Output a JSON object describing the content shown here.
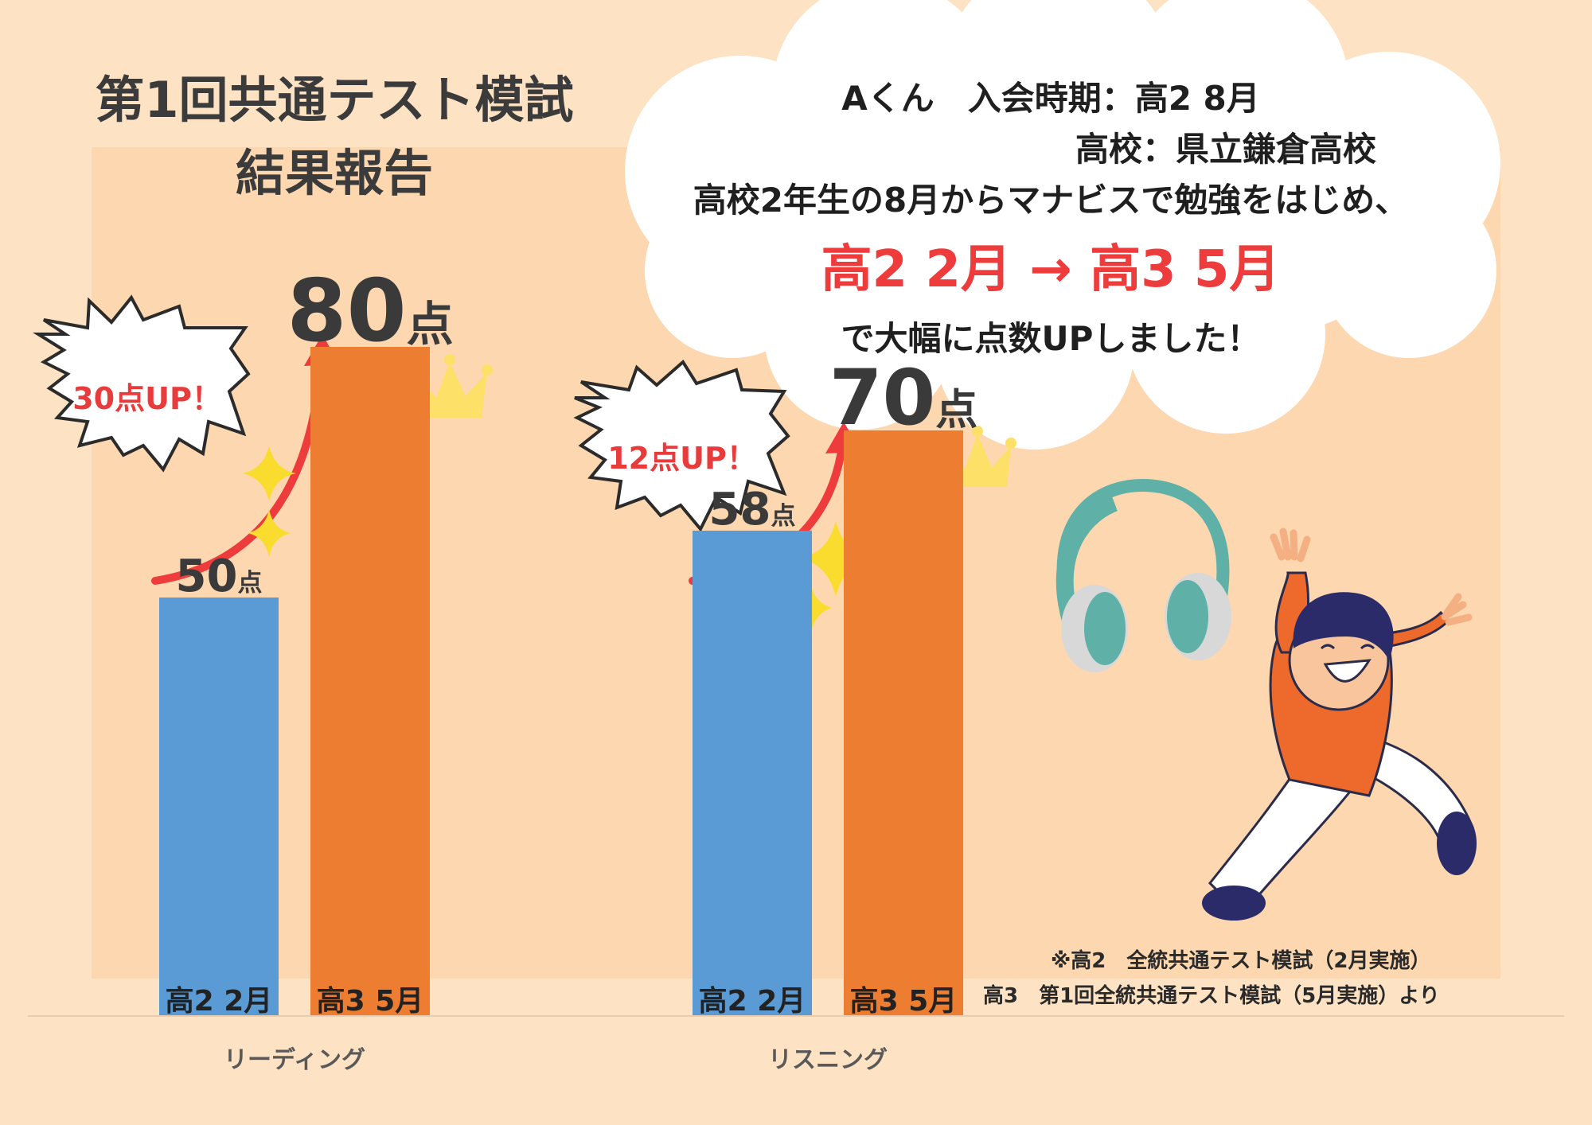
{
  "title": {
    "line1": "第1回共通テスト模試",
    "line2": "結果報告"
  },
  "info": {
    "line1": "Aくん　入会時期：高2 8月",
    "line2": "高校：県立鎌倉高校",
    "line3": "高校2年生の8月からマナビスで勉強をはじめ、",
    "highlight": "高2 2月 → 高3 5月",
    "line5": "で大幅に点数UPしました！"
  },
  "badges": {
    "reading": "30点UP！",
    "listening": "12点UP！"
  },
  "footnote": {
    "line1": "※高2　全統共通テスト模試（2月実施）",
    "line2": "高3　第1回全統共通テスト模試（5月実施）より"
  },
  "unit": "点",
  "colors": {
    "bar_before": "#5b9bd5",
    "bar_after": "#ed7d31",
    "accent": "#ee3b3b",
    "background": "#fde2c4"
  },
  "chart_data": {
    "type": "bar",
    "categories": [
      "リーディング",
      "リスニング"
    ],
    "series": [
      {
        "name": "高2 2月",
        "values": [
          50,
          58
        ]
      },
      {
        "name": "高3 5月",
        "values": [
          80,
          70
        ]
      }
    ],
    "ylim": [
      0,
      100
    ],
    "grid": false,
    "legend": "none"
  }
}
